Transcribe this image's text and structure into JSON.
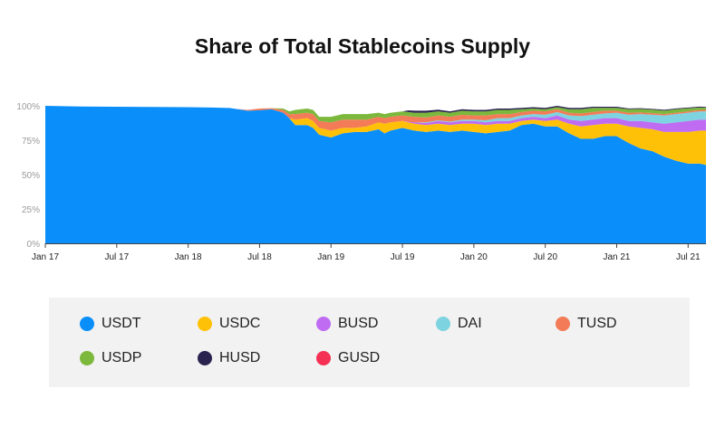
{
  "chart_data": {
    "type": "area",
    "stacked": true,
    "normalized": true,
    "title": "Share of Total Stablecoins Supply",
    "xlabel": "",
    "ylabel": "",
    "ylim": [
      0,
      100
    ],
    "y_ticks": [
      0,
      25,
      50,
      75,
      100
    ],
    "y_tick_labels": [
      "0%",
      "25%",
      "50%",
      "75%",
      "100%"
    ],
    "x_range": [
      0,
      55.5
    ],
    "x_ticks": [
      0,
      6,
      12,
      18,
      24,
      30,
      36,
      42,
      48,
      54
    ],
    "x_tick_labels": [
      "Jan 17",
      "Jul 17",
      "Jan 18",
      "Jul 18",
      "Jan 19",
      "Jul 19",
      "Jan 20",
      "Jul 20",
      "Jan 21",
      "Jul 21"
    ],
    "x": [
      0,
      3,
      6,
      9,
      12,
      14,
      15.5,
      16,
      17,
      18,
      19,
      20,
      20.5,
      21,
      22,
      22.5,
      23,
      24,
      25,
      26,
      27,
      28,
      28.5,
      29,
      30,
      30.5,
      31,
      32,
      33,
      34,
      35,
      36,
      37,
      38,
      39,
      40,
      41,
      42,
      43,
      44,
      45,
      46,
      47,
      48,
      49,
      50,
      51,
      52,
      53,
      54,
      55,
      55.5
    ],
    "series": [
      {
        "name": "USDT",
        "color": "#0a8ffa",
        "values": [
          100,
          99.5,
          99.3,
          99.2,
          99,
          98.8,
          98.4,
          97.8,
          96.5,
          96.8,
          97.5,
          95,
          91,
          86,
          86,
          84,
          79,
          77,
          80,
          81,
          81,
          83,
          80,
          82,
          84,
          83,
          82,
          81,
          82,
          81,
          82,
          81,
          80,
          81,
          82,
          86,
          87,
          85,
          85,
          80,
          76,
          76,
          78,
          78,
          73,
          69,
          67,
          63,
          60,
          58,
          58,
          57
        ]
      },
      {
        "name": "USDC",
        "color": "#ffc107",
        "values": [
          0,
          0,
          0,
          0,
          0,
          0,
          0,
          0,
          0,
          0,
          0,
          0,
          0,
          4,
          5,
          5,
          5,
          5,
          4,
          3,
          4,
          5,
          7,
          6,
          5,
          5,
          5,
          5,
          5,
          5,
          5,
          6,
          6,
          6,
          5,
          3,
          3,
          4,
          5,
          7,
          9,
          10,
          9,
          9,
          12,
          15,
          16,
          18,
          21,
          23,
          24,
          25
        ]
      },
      {
        "name": "BUSD",
        "color": "#bf6bf2",
        "values": [
          0,
          0,
          0,
          0,
          0,
          0,
          0,
          0,
          0,
          0,
          0,
          0,
          0,
          0,
          0,
          0,
          0,
          0,
          0,
          0,
          0,
          0,
          0,
          0,
          0,
          0.5,
          1,
          1.5,
          2,
          2,
          2,
          2,
          2,
          2,
          2,
          2,
          2,
          2,
          3,
          3,
          4,
          4,
          4,
          4,
          4,
          5,
          5,
          6,
          7,
          8,
          8,
          8
        ]
      },
      {
        "name": "DAI",
        "color": "#7dd3df",
        "values": [
          0,
          0,
          0,
          0,
          0,
          0,
          0,
          0,
          0,
          0,
          0,
          0,
          0,
          0,
          0,
          0,
          0,
          0,
          0,
          0,
          0,
          0,
          0,
          0,
          0,
          0,
          0,
          0.5,
          0.5,
          0.5,
          1,
          1,
          1.5,
          2,
          2,
          2,
          2,
          2.5,
          2.5,
          3,
          3.5,
          3.5,
          3.5,
          4,
          4.5,
          5,
          5.5,
          6,
          6,
          6,
          6,
          6
        ]
      },
      {
        "name": "TUSD",
        "color": "#f37b57",
        "values": [
          0,
          0,
          0,
          0,
          0,
          0,
          0,
          0,
          0.5,
          1.2,
          0.8,
          2,
          3,
          4,
          4,
          5,
          5,
          6,
          6,
          6,
          5,
          4,
          4,
          4,
          4,
          4,
          4,
          3.5,
          3.5,
          3.5,
          3.5,
          3,
          3.5,
          3,
          3,
          2.5,
          2.5,
          2.5,
          2,
          2,
          2,
          2,
          2,
          1.5,
          1.5,
          1.2,
          1.2,
          1,
          1,
          1,
          1,
          1
        ]
      },
      {
        "name": "USDP",
        "color": "#7cb83c",
        "values": [
          0,
          0,
          0,
          0,
          0,
          0,
          0,
          0,
          0,
          0,
          0,
          1,
          2,
          3,
          3,
          3,
          3,
          4,
          4,
          4,
          4,
          3,
          3,
          3,
          3,
          3,
          3,
          3.5,
          3,
          3,
          3,
          3,
          3,
          3,
          3,
          2,
          1.5,
          1.5,
          1.5,
          2.5,
          3,
          3,
          2,
          2,
          2.5,
          2.5,
          2.5,
          2.5,
          2.5,
          2.2,
          1.8,
          1.6
        ]
      },
      {
        "name": "HUSD",
        "color": "#2a2350",
        "values": [
          0,
          0,
          0,
          0,
          0,
          0,
          0,
          0,
          0,
          0,
          0,
          0,
          0,
          0,
          0,
          0,
          0,
          0,
          0,
          0,
          0,
          0,
          0,
          0,
          0,
          1.2,
          1.5,
          1.5,
          1.2,
          1,
          1,
          1,
          1,
          1,
          1,
          1,
          1,
          1,
          1,
          1,
          1,
          0.8,
          0.8,
          0.8,
          0.6,
          0.6,
          0.6,
          0.6,
          0.6,
          0.6,
          0.6,
          0.6
        ]
      },
      {
        "name": "GUSD",
        "color": "#f53055",
        "values": [
          0,
          0,
          0,
          0,
          0,
          0,
          0,
          0,
          0,
          0,
          0,
          0,
          0,
          0,
          0,
          0,
          0,
          0,
          0,
          0,
          0,
          0,
          0,
          0,
          0,
          0,
          0,
          0,
          0,
          0,
          0,
          0,
          0,
          0,
          0,
          0,
          0,
          0,
          0,
          0,
          0,
          0,
          0,
          0,
          0,
          0,
          0,
          0,
          0,
          0,
          0,
          0
        ]
      }
    ]
  }
}
